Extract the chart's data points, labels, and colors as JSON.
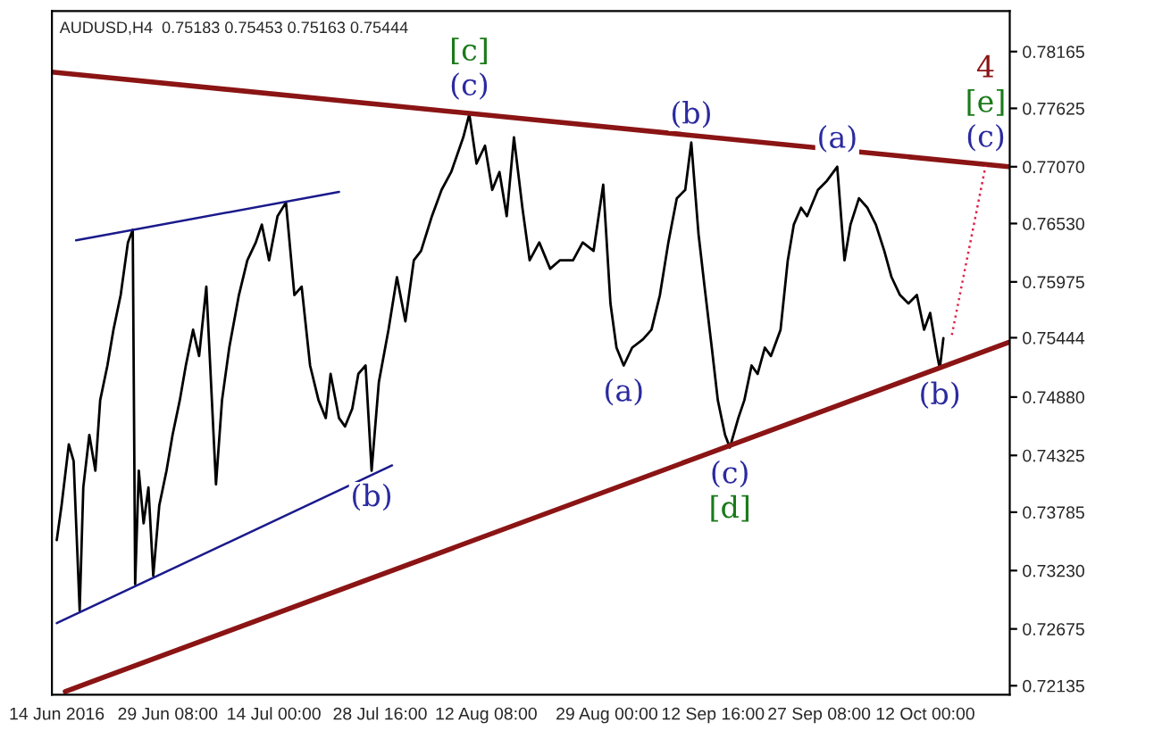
{
  "chart_data": {
    "type": "line",
    "title": "AUDUSD,H4  0.75183 0.75453 0.75163 0.75444",
    "xlim": [
      "2016-06-13T08:00",
      "2016-10-23T16:00"
    ],
    "ylim": [
      0.7205,
      0.7855
    ],
    "xticks": [
      {
        "value": "2016-06-14T00:00",
        "label": "14 Jun 2016"
      },
      {
        "value": "2016-06-29T08:00",
        "label": "29 Jun 08:00"
      },
      {
        "value": "2016-07-14T00:00",
        "label": "14 Jul 00:00"
      },
      {
        "value": "2016-07-28T16:00",
        "label": "28 Jul 16:00"
      },
      {
        "value": "2016-08-12T08:00",
        "label": "12 Aug 08:00"
      },
      {
        "value": "2016-08-29T00:00",
        "label": "29 Aug 00:00"
      },
      {
        "value": "2016-09-12T16:00",
        "label": "12 Sep 16:00"
      },
      {
        "value": "2016-09-27T08:00",
        "label": "27 Sep 08:00"
      },
      {
        "value": "2016-10-12T00:00",
        "label": "12 Oct 00:00"
      }
    ],
    "yticks": [
      {
        "value": 0.72135,
        "label": "0.72135"
      },
      {
        "value": 0.72675,
        "label": "0.72675"
      },
      {
        "value": 0.7323,
        "label": "0.73230"
      },
      {
        "value": 0.73785,
        "label": "0.73785"
      },
      {
        "value": 0.74325,
        "label": "0.74325"
      },
      {
        "value": 0.7488,
        "label": "0.74880"
      },
      {
        "value": 0.75444,
        "label": "0.75444"
      },
      {
        "value": 0.75975,
        "label": "0.75975"
      },
      {
        "value": 0.7653,
        "label": "0.76530"
      },
      {
        "value": 0.7707,
        "label": "0.77070"
      },
      {
        "value": 0.77625,
        "label": "0.77625"
      },
      {
        "value": 0.78165,
        "label": "0.78165"
      }
    ],
    "grid": false,
    "legend": false,
    "marker": "none",
    "series": [
      {
        "color": "#000000",
        "line_style": "solid",
        "x": [
          "2016-06-14T00:00",
          "2016-06-14T16:00",
          "2016-06-15T16:00",
          "2016-06-16T08:00",
          "2016-06-17T04:00",
          "2016-06-17T16:00",
          "2016-06-18T12:00",
          "2016-06-19T08:00",
          "2016-06-20T00:00",
          "2016-06-21T00:00",
          "2016-06-21T20:00",
          "2016-06-22T20:00",
          "2016-06-23T20:00",
          "2016-06-24T12:00",
          "2016-06-24T20:00",
          "2016-06-25T08:00",
          "2016-06-26T00:00",
          "2016-06-26T16:00",
          "2016-06-27T08:00",
          "2016-06-28T04:00",
          "2016-06-29T04:00",
          "2016-06-30T00:00",
          "2016-07-01T00:00",
          "2016-07-01T20:00",
          "2016-07-02T20:00",
          "2016-07-03T16:00",
          "2016-07-04T16:00",
          "2016-07-06T00:00",
          "2016-07-06T20:00",
          "2016-07-07T20:00",
          "2016-07-09T04:00",
          "2016-07-10T08:00",
          "2016-07-11T12:00",
          "2016-07-12T08:00",
          "2016-07-13T08:00",
          "2016-07-14T12:00",
          "2016-07-15T16:00",
          "2016-07-16T20:00",
          "2016-07-17T20:00",
          "2016-07-19T00:00",
          "2016-07-20T04:00",
          "2016-07-21T04:00",
          "2016-07-21T20:00",
          "2016-07-23T00:00",
          "2016-07-23T20:00",
          "2016-07-24T20:00",
          "2016-07-25T16:00",
          "2016-07-26T16:00",
          "2016-07-27T12:00",
          "2016-07-28T12:00",
          "2016-07-29T20:00",
          "2016-07-31T00:00",
          "2016-08-01T04:00",
          "2016-08-02T08:00",
          "2016-08-03T08:00",
          "2016-08-04T20:00",
          "2016-08-06T04:00",
          "2016-08-07T12:00",
          "2016-08-09T04:00",
          "2016-08-10T00:00",
          "2016-08-11T00:00",
          "2016-08-12T04:00",
          "2016-08-13T04:00",
          "2016-08-14T04:00",
          "2016-08-15T04:00",
          "2016-08-16T04:00",
          "2016-08-17T08:00",
          "2016-08-18T08:00",
          "2016-08-19T16:00",
          "2016-08-21T04:00",
          "2016-08-22T12:00",
          "2016-08-24T08:00",
          "2016-08-25T16:00",
          "2016-08-27T04:00",
          "2016-08-28T12:00",
          "2016-08-29T12:00",
          "2016-08-30T08:00",
          "2016-08-31T08:00",
          "2016-09-01T12:00",
          "2016-09-03T00:00",
          "2016-09-04T04:00",
          "2016-09-05T08:00",
          "2016-09-06T12:00",
          "2016-09-07T16:00",
          "2016-09-08T20:00",
          "2016-09-09T16:00",
          "2016-09-10T16:00",
          "2016-09-11T12:00",
          "2016-09-12T12:00",
          "2016-09-13T08:00",
          "2016-09-14T08:00",
          "2016-09-15T00:00",
          "2016-09-16T04:00",
          "2016-09-17T00:00",
          "2016-09-18T00:00",
          "2016-09-18T20:00",
          "2016-09-19T20:00",
          "2016-09-20T16:00",
          "2016-09-22T00:00",
          "2016-09-23T00:00",
          "2016-09-23T20:00",
          "2016-09-24T20:00",
          "2016-09-25T16:00",
          "2016-09-27T04:00",
          "2016-09-28T08:00",
          "2016-09-29T20:00",
          "2016-09-30T20:00",
          "2016-10-01T16:00",
          "2016-10-02T20:00",
          "2016-10-04T00:00",
          "2016-10-05T04:00",
          "2016-10-06T08:00",
          "2016-10-07T08:00",
          "2016-10-08T12:00",
          "2016-10-09T16:00",
          "2016-10-10T20:00",
          "2016-10-11T20:00",
          "2016-10-12T16:00",
          "2016-10-13T16:00",
          "2016-10-14T00:00",
          "2016-10-14T12:00"
        ],
        "values": [
          0.7352,
          0.7385,
          0.7443,
          0.7427,
          0.7285,
          0.7402,
          0.7452,
          0.7418,
          0.7485,
          0.7518,
          0.7552,
          0.7585,
          0.7635,
          0.7647,
          0.731,
          0.7418,
          0.7368,
          0.7402,
          0.7318,
          0.7385,
          0.7418,
          0.7452,
          0.7485,
          0.7518,
          0.7552,
          0.7527,
          0.7593,
          0.7405,
          0.7485,
          0.7535,
          0.7585,
          0.7618,
          0.7635,
          0.7652,
          0.7618,
          0.766,
          0.7673,
          0.7585,
          0.7593,
          0.7518,
          0.7485,
          0.7468,
          0.751,
          0.7468,
          0.746,
          0.7477,
          0.751,
          0.7518,
          0.7418,
          0.7502,
          0.7552,
          0.7602,
          0.756,
          0.7618,
          0.7627,
          0.766,
          0.7685,
          0.7702,
          0.7735,
          0.7757,
          0.771,
          0.7727,
          0.7685,
          0.7702,
          0.766,
          0.7735,
          0.7668,
          0.7618,
          0.7635,
          0.761,
          0.7618,
          0.7618,
          0.7635,
          0.7627,
          0.769,
          0.7577,
          0.7535,
          0.7518,
          0.7535,
          0.7543,
          0.7552,
          0.7585,
          0.7635,
          0.7677,
          0.7685,
          0.773,
          0.7643,
          0.7593,
          0.7535,
          0.7485,
          0.7452,
          0.744,
          0.7468,
          0.7485,
          0.7518,
          0.751,
          0.7535,
          0.7527,
          0.7552,
          0.7618,
          0.7652,
          0.7668,
          0.766,
          0.7685,
          0.7693,
          0.7707,
          0.7618,
          0.7652,
          0.7677,
          0.7668,
          0.7652,
          0.7627,
          0.7602,
          0.7585,
          0.7577,
          0.7585,
          0.7552,
          0.7568,
          0.7527,
          0.7515,
          0.7544
        ]
      },
      {
        "color": "#8b1414",
        "line_style": "solid",
        "x": [
          "2016-06-13T08:00",
          "2016-10-23T12:00"
        ],
        "values": [
          0.7797,
          0.7707
        ]
      },
      {
        "color": "#8b1414",
        "line_style": "solid",
        "x": [
          "2016-06-15T04:00",
          "2016-10-23T12:00"
        ],
        "values": [
          0.7208,
          0.754
        ]
      },
      {
        "color": "#1a1a8c",
        "line_style": "solid",
        "x": [
          "2016-06-16T16:00",
          "2016-07-23T00:00"
        ],
        "values": [
          0.7637,
          0.7683
        ]
      },
      {
        "color": "#1a1a8c",
        "line_style": "solid",
        "x": [
          "2016-06-14T00:00",
          "2016-07-30T08:00"
        ],
        "values": [
          0.7273,
          0.7423
        ]
      },
      {
        "color": "#e0204a",
        "line_style": "dotted",
        "x": [
          "2016-10-15T16:00",
          "2016-10-20T08:00"
        ],
        "values": [
          0.7547,
          0.7708
        ]
      }
    ],
    "annotations": [
      {
        "text": "(c)",
        "x": "2016-08-10T00:00",
        "y": 0.7757
      },
      {
        "text": "[c]",
        "x": "2016-08-10T00:00",
        "y": 0.7757
      },
      {
        "text": "(b)",
        "x": "2016-07-27T12:00",
        "y": 0.7418
      },
      {
        "text": "(a)",
        "x": "2016-08-31T08:00",
        "y": 0.7518
      },
      {
        "text": "(b)",
        "x": "2016-09-09T16:00",
        "y": 0.773
      },
      {
        "text": "(c)",
        "x": "2016-09-15T00:00",
        "y": 0.744
      },
      {
        "text": "[d]",
        "x": "2016-09-15T00:00",
        "y": 0.744
      },
      {
        "text": "(a)",
        "x": "2016-09-29T20:00",
        "y": 0.7707
      },
      {
        "text": "(b)",
        "x": "2016-10-14T00:00",
        "y": 0.7515
      },
      {
        "text": "(c)",
        "x": "2016-10-20T08:00",
        "y": 0.7708
      },
      {
        "text": "[e]",
        "x": "2016-10-20T08:00",
        "y": 0.7708
      },
      "4"
    ]
  }
}
